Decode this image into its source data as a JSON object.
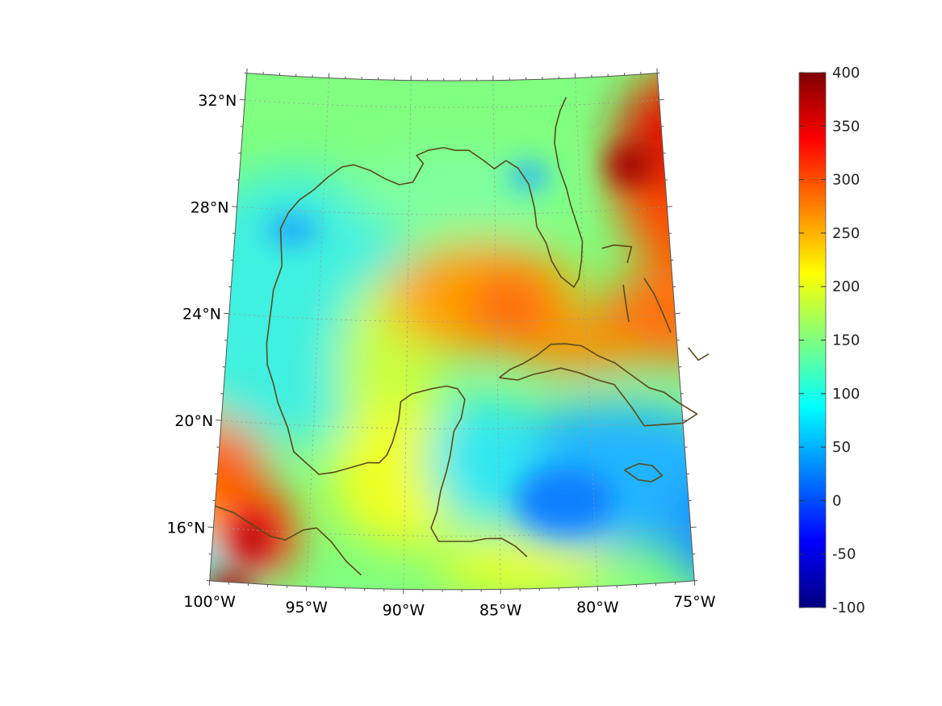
{
  "map": {
    "projection": "conic",
    "lon_range": [
      -100,
      -75
    ],
    "lat_range": [
      14,
      33
    ],
    "lat_labels": [
      {
        "lat": 32,
        "text": "32°N"
      },
      {
        "lat": 28,
        "text": "28°N"
      },
      {
        "lat": 24,
        "text": "24°N"
      },
      {
        "lat": 20,
        "text": "20°N"
      },
      {
        "lat": 16,
        "text": "16°N"
      }
    ],
    "lon_labels": [
      {
        "lon": -100,
        "text": "100°W"
      },
      {
        "lon": -95,
        "text": "95°W"
      },
      {
        "lon": -90,
        "text": "90°W"
      },
      {
        "lon": -85,
        "text": "85°W"
      },
      {
        "lon": -80,
        "text": "80°W"
      },
      {
        "lon": -75,
        "text": "75°W"
      }
    ],
    "grid": true,
    "coastline_color": "#5a4a1a"
  },
  "colorbar": {
    "colormap": "jet",
    "min": -100,
    "max": 400,
    "ticks": [
      "400",
      "350",
      "300",
      "250",
      "200",
      "150",
      "100",
      "50",
      "0",
      "-50",
      "-100"
    ]
  }
}
